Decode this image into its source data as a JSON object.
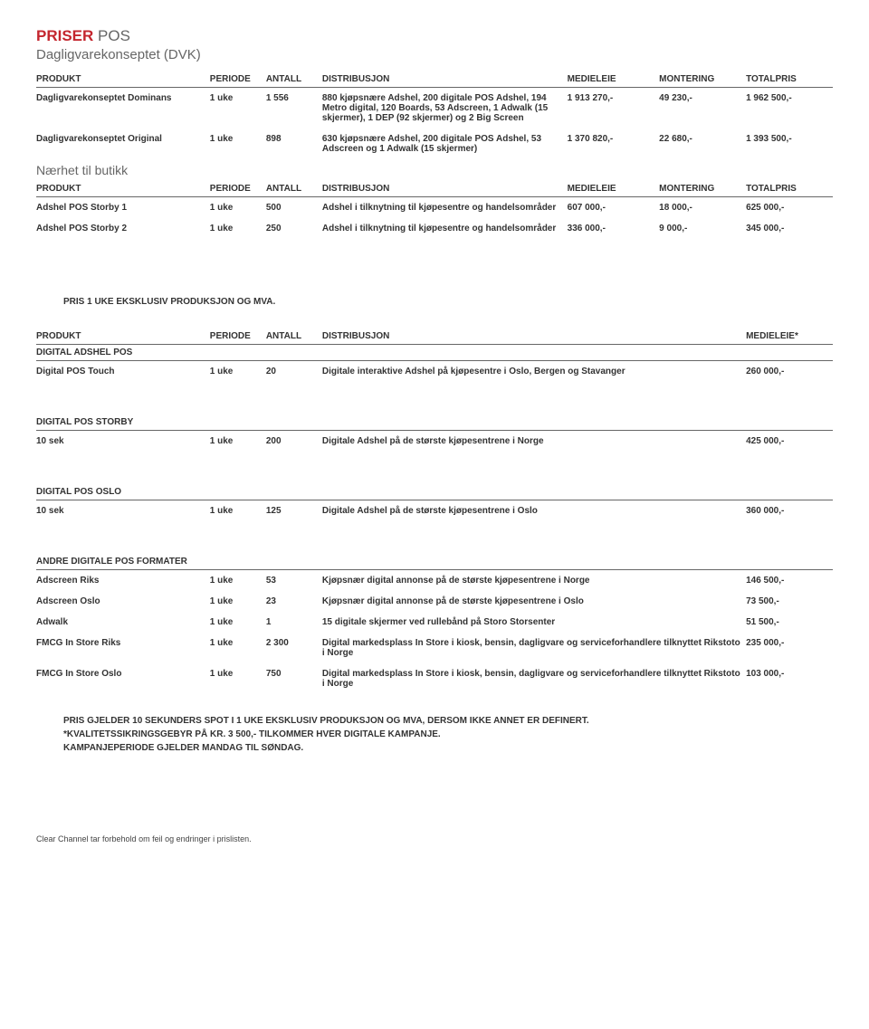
{
  "title": {
    "red": "PRISER",
    "gray": " POS"
  },
  "subtitle1": "Dagligvarekonseptet (DVK)",
  "headers7": {
    "produkt": "PRODUKT",
    "periode": "PERIODE",
    "antall": "ANTALL",
    "dist": "DISTRIBUSJON",
    "medieleie": "MEDIELEIE",
    "montering": "MONTERING",
    "totalpris": "TOTALPRIS"
  },
  "dvk": [
    {
      "produkt": "Dagligvarekonseptet Dominans",
      "periode": "1 uke",
      "antall": "1 556",
      "dist": "880 kjøpsnære Adshel, 200 digitale POS Adshel, 194 Metro digital, 120 Boards, 53 Adscreen, 1 Adwalk (15 skjermer), 1 DEP (92 skjermer) og 2 Big Screen",
      "medieleie": "1 913 270,-",
      "montering": "49 230,-",
      "totalpris": "1 962 500,-"
    },
    {
      "produkt": "Dagligvarekonseptet Original",
      "periode": "1 uke",
      "antall": "898",
      "dist": "630 kjøpsnære Adshel, 200 digitale POS Adshel, 53 Adscreen og 1 Adwalk (15 skjermer)",
      "medieleie": "1 370 820,-",
      "montering": "22 680,-",
      "totalpris": "1 393 500,-"
    }
  ],
  "subtitle2": "Nærhet til butikk",
  "nb": [
    {
      "produkt": "Adshel POS Storby 1",
      "periode": "1 uke",
      "antall": "500",
      "dist": "Adshel i tilknytning til kjøpesentre og handelsområder",
      "medieleie": "607 000,-",
      "montering": "18 000,-",
      "totalpris": "625 000,-"
    },
    {
      "produkt": "Adshel POS Storby 2",
      "periode": "1 uke",
      "antall": "250",
      "dist": "Adshel i tilknytning til kjøpesentre og handelsområder",
      "medieleie": "336 000,-",
      "montering": "9 000,-",
      "totalpris": "345 000,-"
    }
  ],
  "note1": "PRIS 1 UKE EKSKLUSIV PRODUKSJON OG MVA.",
  "headers5": {
    "produkt": "PRODUKT",
    "periode": "PERIODE",
    "antall": "ANTALL",
    "dist": "DISTRIBUSJON",
    "medieleie": "MEDIELEIE*"
  },
  "sections": [
    {
      "heading": "DIGITAL ADSHEL POS",
      "rows": [
        {
          "produkt": "Digital POS Touch",
          "periode": "1 uke",
          "antall": "20",
          "dist": "Digitale interaktive Adshel på kjøpesentre i Oslo, Bergen og Stavanger",
          "medieleie": "260 000,-"
        }
      ]
    },
    {
      "heading": "DIGITAL POS STORBY",
      "rows": [
        {
          "produkt": "10 sek",
          "periode": "1 uke",
          "antall": "200",
          "dist": "Digitale Adshel på de største kjøpesentrene i Norge",
          "medieleie": "425 000,-"
        }
      ]
    },
    {
      "heading": "DIGITAL POS OSLO",
      "rows": [
        {
          "produkt": "10 sek",
          "periode": "1 uke",
          "antall": "125",
          "dist": "Digitale Adshel på de største kjøpesentrene i Oslo",
          "medieleie": "360 000,-"
        }
      ]
    },
    {
      "heading": "ANDRE DIGITALE POS FORMATER",
      "rows": [
        {
          "produkt": "Adscreen Riks",
          "periode": "1 uke",
          "antall": "53",
          "dist": "Kjøpsnær digital annonse på de største kjøpesentrene i Norge",
          "medieleie": "146 500,-"
        },
        {
          "produkt": "Adscreen Oslo",
          "periode": "1 uke",
          "antall": "23",
          "dist": "Kjøpsnær digital annonse på de største kjøpesentrene i Oslo",
          "medieleie": "73 500,-"
        },
        {
          "produkt": "Adwalk",
          "periode": "1 uke",
          "antall": "1",
          "dist": "15 digitale skjermer ved rullebånd på Storo Storsenter",
          "medieleie": "51 500,-"
        },
        {
          "produkt": "FMCG In Store Riks",
          "periode": "1 uke",
          "antall": "2 300",
          "dist": "Digital markedsplass In Store i kiosk, bensin, dagligvare og serviceforhandlere tilknyttet Rikstoto i Norge",
          "medieleie": "235 000,-"
        },
        {
          "produkt": "FMCG In Store Oslo",
          "periode": "1 uke",
          "antall": "750",
          "dist": "Digital markedsplass In Store i kiosk, bensin, dagligvare og serviceforhandlere tilknyttet Rikstoto i Norge",
          "medieleie": "103 000,-"
        }
      ]
    }
  ],
  "note2a": "PRIS GJELDER 10 SEKUNDERS SPOT I 1 UKE EKSKLUSIV PRODUKSJON OG MVA, DERSOM IKKE ANNET ER DEFINERT.",
  "note2b": "*KVALITETSSIKRINGSGEBYR PÅ KR. 3 500,- TILKOMMER HVER DIGITALE KAMPANJE.",
  "note2c": "KAMPANJEPERIODE GJELDER MANDAG TIL SØNDAG.",
  "footer": "Clear Channel tar forbehold om feil og endringer i prislisten."
}
